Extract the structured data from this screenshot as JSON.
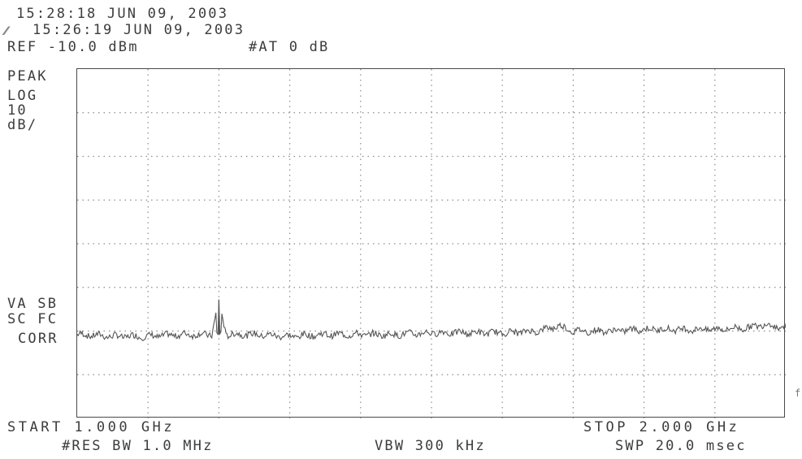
{
  "header": {
    "timestamp_current": "15:28:18 JUN 09, 2003",
    "trace_glyph": "⁄⁄",
    "timestamp_trace": "15:26:19 JUN 09, 2003",
    "ref_level": "REF -10.0 dBm",
    "attenuation": "#AT 0 dB"
  },
  "left_annotations": {
    "detector": "PEAK",
    "scale_type": "LOG",
    "scale_value": "10",
    "scale_unit": "dB/",
    "trace_mode_1": "VA SB",
    "trace_mode_2": "SC FC",
    "correction": "CORR"
  },
  "footer": {
    "start": "START 1.000 GHz",
    "stop": "STOP 2.000 GHz",
    "res_bw": "#RES BW 1.0 MHz",
    "vbw": "VBW 300 kHz",
    "sweep": "SWP 20.0 msec"
  },
  "edge_mark": "f",
  "colors": {
    "trace": "#555555",
    "grid": "#8c8c8c",
    "border": "#4a4a4a",
    "text": "#3c3c3c"
  },
  "chart_data": {
    "type": "line",
    "title": "",
    "xlabel": "",
    "ylabel": "",
    "x_unit": "GHz",
    "y_unit": "dBm",
    "xlim": [
      1.0,
      2.0
    ],
    "ylim": [
      -110,
      -10
    ],
    "reference_level_dBm": -10,
    "scale_dB_per_div": 10,
    "grid": true,
    "grid_divisions": {
      "x": 10,
      "y": 8
    },
    "noise_floor_dBm": -86,
    "series": [
      {
        "x": [
          1.0,
          1.05,
          1.1,
          1.15,
          1.19,
          1.2,
          1.21,
          1.25,
          1.3,
          1.35,
          1.4,
          1.45,
          1.5,
          1.55,
          1.6,
          1.65,
          1.68,
          1.7,
          1.75,
          1.8,
          1.85,
          1.9,
          1.95,
          1.97,
          2.0
        ],
        "values": [
          -86,
          -86.5,
          -86.5,
          -86,
          -86,
          -76,
          -86,
          -86,
          -86.5,
          -86,
          -86,
          -86,
          -85.5,
          -85.5,
          -85.5,
          -85,
          -83.5,
          -85,
          -85,
          -84.5,
          -84.5,
          -84.5,
          -84,
          -83,
          -84
        ]
      }
    ]
  }
}
